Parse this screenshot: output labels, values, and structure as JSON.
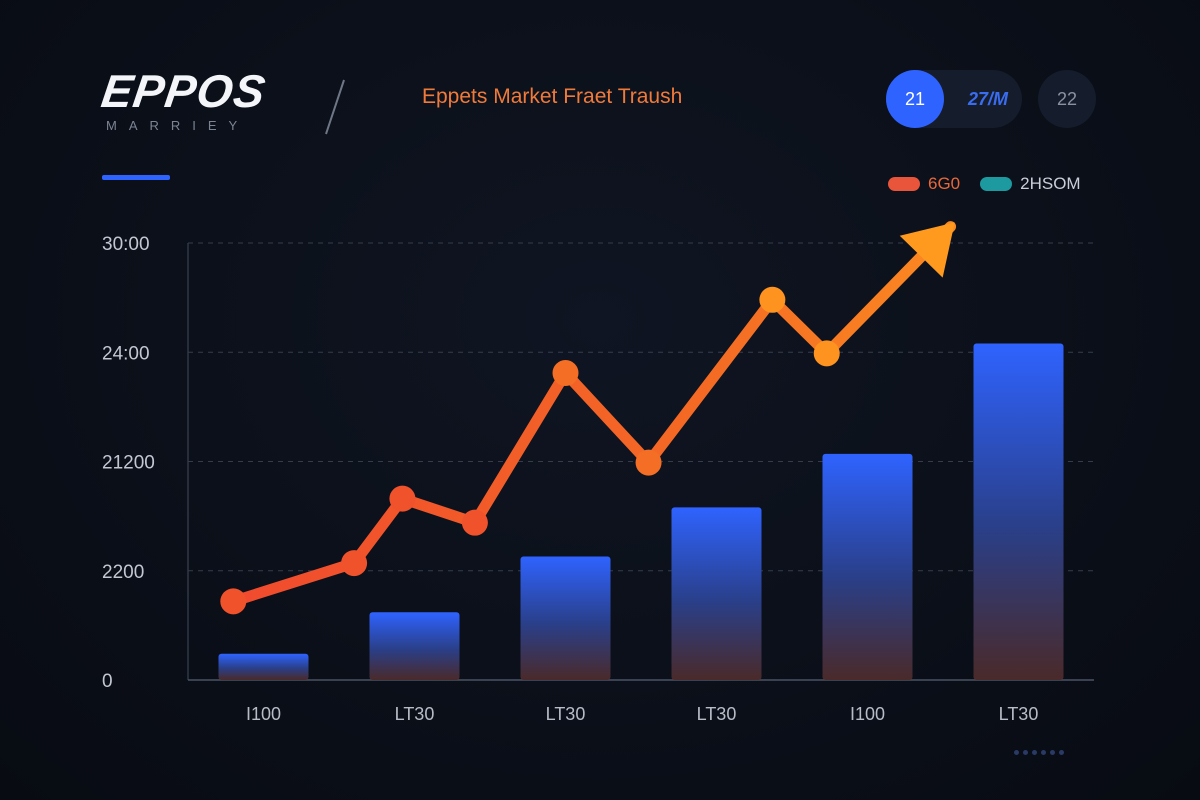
{
  "brand": {
    "name": "EPPOS",
    "subtitle": "MARRIEY"
  },
  "header": {
    "title": "Eppets Market Fraet Traush"
  },
  "period_selector": {
    "active_label": "21",
    "middle_label": "27/M",
    "right_label": "22"
  },
  "legend": {
    "items": [
      {
        "label": "6G0",
        "color": "#e8553a"
      },
      {
        "label": "2HSOM",
        "color": "#1c9aa0"
      }
    ]
  },
  "colors": {
    "accent": "#2f63ff",
    "line_start": "#f04a2e",
    "line_end": "#ff9a1f",
    "bar_top": "#2f63ff",
    "bar_bottom": "#4a2a2a",
    "grid": "#3a4252",
    "background": "#0b101a"
  },
  "chart_data": {
    "type": "bar",
    "title": "Eppets Market Fraet Traush",
    "xlabel": "",
    "ylabel": "",
    "categories": [
      "I100",
      "LT30",
      "LT30",
      "LT30",
      "I100",
      "LT30"
    ],
    "y_ticks": [
      {
        "value": 0,
        "label": "0"
      },
      {
        "value": 1,
        "label": "2200"
      },
      {
        "value": 2,
        "label": "21200"
      },
      {
        "value": 3,
        "label": "24:00"
      },
      {
        "value": 4,
        "label": "30:00"
      }
    ],
    "ylim": [
      0,
      4
    ],
    "grid": true,
    "legend_position": "top-right",
    "series": [
      {
        "name": "2HSOM",
        "kind": "bar",
        "values": [
          0.24,
          0.62,
          1.13,
          1.58,
          2.07,
          3.08
        ]
      },
      {
        "name": "6G0",
        "kind": "line",
        "x": [
          0.3,
          1.1,
          1.42,
          1.9,
          2.5,
          3.05,
          3.87,
          4.23
        ],
        "values": [
          0.72,
          1.07,
          1.66,
          1.44,
          2.81,
          1.99,
          3.48,
          2.99
        ],
        "end_arrow": {
          "x": 5.05,
          "value": 4.15
        }
      }
    ]
  }
}
